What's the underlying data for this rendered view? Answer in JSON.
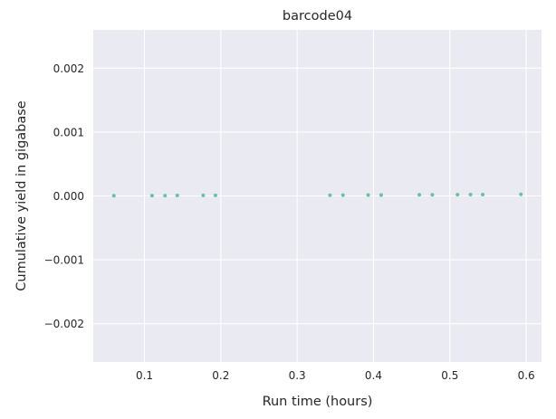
{
  "chart_data": {
    "type": "scatter",
    "title": "barcode04",
    "xlabel": "Run time (hours)",
    "ylabel": "Cumulative yield in gigabase",
    "xlim": [
      0.033,
      0.62
    ],
    "ylim": [
      -0.0026,
      0.0026
    ],
    "x_ticks": [
      0.1,
      0.2,
      0.3,
      0.4,
      0.5,
      0.6
    ],
    "x_tick_labels": [
      "0.1",
      "0.2",
      "0.3",
      "0.4",
      "0.5",
      "0.6"
    ],
    "y_ticks": [
      0.002,
      0.001,
      0.0,
      -0.001,
      -0.002
    ],
    "y_tick_labels": [
      "0.002",
      "0.001",
      "0.000",
      "−0.001",
      "−0.002"
    ],
    "grid": true,
    "background": "#eaeaf2",
    "grid_color": "#ffffff",
    "point_color": "#66c2a5",
    "series": [
      {
        "x": [
          0.06,
          0.11,
          0.127,
          0.143,
          0.177,
          0.193,
          0.343,
          0.36,
          0.393,
          0.41,
          0.46,
          0.477,
          0.51,
          0.527,
          0.543,
          0.593
        ],
        "y": [
          4e-06,
          5e-06,
          6e-06,
          7e-06,
          8e-06,
          9e-06,
          1.1e-05,
          1.2e-05,
          1.4e-05,
          1.5e-05,
          1.7e-05,
          1.8e-05,
          2e-05,
          2.1e-05,
          2.2e-05,
          2.4e-05
        ]
      }
    ]
  }
}
